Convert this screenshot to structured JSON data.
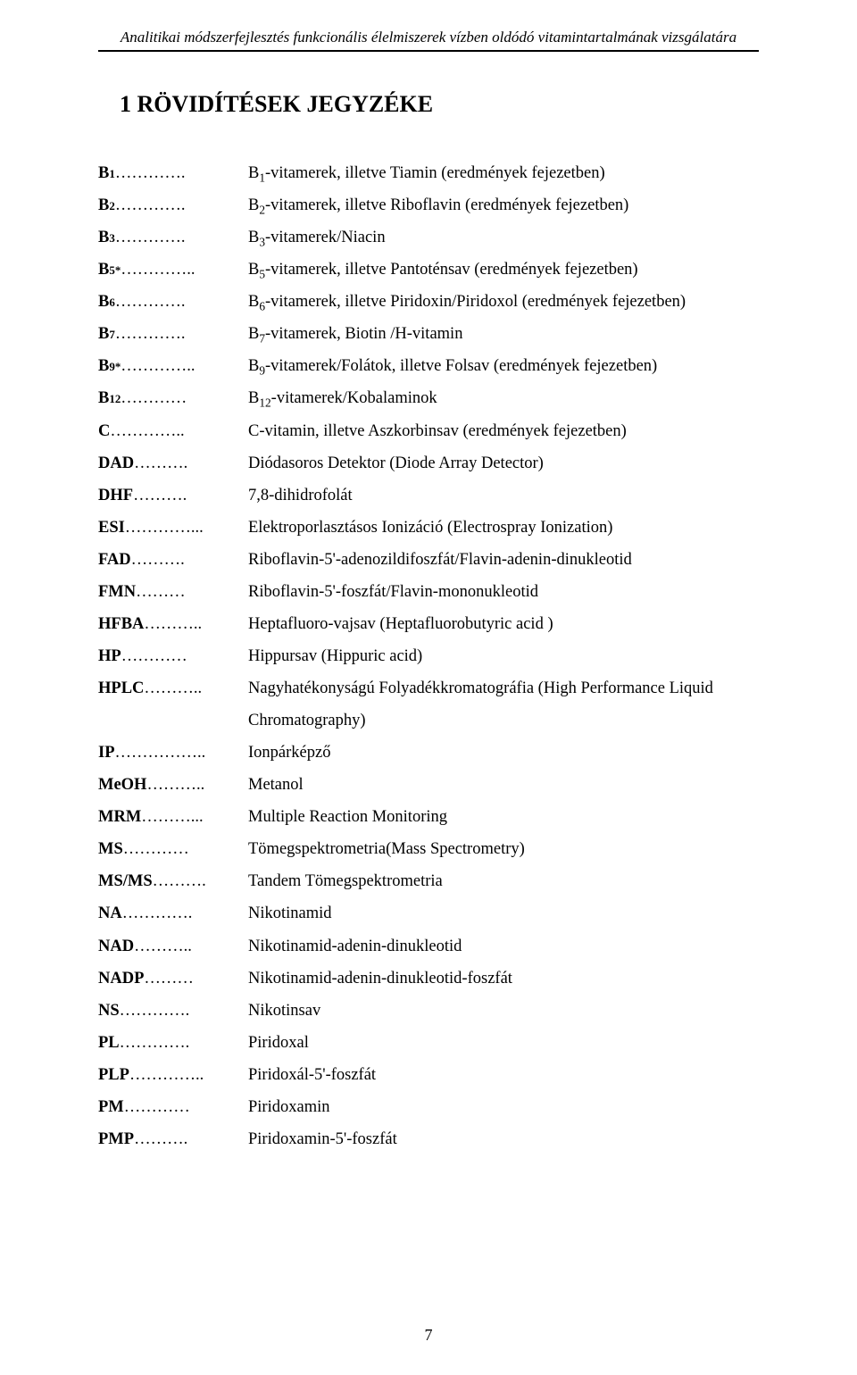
{
  "header": {
    "running_head": "Analitikai módszerfejlesztés funkcionális élelmiszerek vízben oldódó vitamintartalmának vizsgálatára"
  },
  "title": "1   RÖVIDÍTÉSEK JEGYZÉKE",
  "entries": [
    {
      "abbr_html": "B<sub>1</sub>",
      "dots": "…………",
      "sep": ".",
      "def_html": "B<sub>1</sub>-vitamerek, illetve Tiamin (eredmények fejezetben)"
    },
    {
      "abbr_html": "B<sub>2</sub>",
      "dots": "…………",
      "sep": ".",
      "def_html": "B<sub>2</sub>-vitamerek, illetve Riboflavin (eredmények fejezetben)"
    },
    {
      "abbr_html": "B<sub>3</sub>",
      "dots": "…………",
      "sep": ".",
      "def_html": "B<sub>3</sub>-vitamerek/Niacin"
    },
    {
      "abbr_html": "B<sub>5</sub><sup>*</sup>",
      "dots": "………….",
      "sep": ".",
      "def_html": "B<sub>5</sub>-vitamerek, illetve Pantoténsav (eredmények fejezetben)"
    },
    {
      "abbr_html": "B<sub>6</sub>",
      "dots": "…………",
      "sep": ".",
      "def_html": "B<sub>6</sub>-vitamerek, illetve Piridoxin/Piridoxol (eredmények fejezetben)"
    },
    {
      "abbr_html": "B<sub>7</sub>",
      "dots": "…………",
      "sep": ".",
      "def_html": "B<sub>7</sub>-vitamerek, Biotin /H-vitamin"
    },
    {
      "abbr_html": "B<sub>9</sub><sup>*</sup>",
      "dots": "………….",
      "sep": ".",
      "def_html": "B<sub>9</sub>-vitamerek/Folátok, illetve Folsav (eredmények fejezetben)"
    },
    {
      "abbr_html": "B<sub>12</sub>",
      "dots": "…………",
      "sep": "",
      "def_html": "B<sub>12</sub>-vitamerek/Kobalaminok"
    },
    {
      "abbr_html": "C",
      "dots": "…………",
      "sep": "..",
      "def_html": "C-vitamin, illetve Aszkorbinsav (eredmények fejezetben)"
    },
    {
      "abbr_html": "DAD",
      "dots": "………",
      "sep": ".",
      "def_html": "Diódasoros Detektor (Diode Array Detector)"
    },
    {
      "abbr_html": "DHF",
      "dots": "………",
      "sep": ".",
      "def_html": "7,8-dihidrofolát"
    },
    {
      "abbr_html": "ESI",
      "dots": "…………",
      "sep": "...",
      "def_html": "Elektroporlasztásos Ionizáció (Electrospray Ionization)"
    },
    {
      "abbr_html": "FAD",
      "dots": "………",
      "sep": ".",
      "def_html": "Riboflavin-5'-adenozildifoszfát/Flavin-adenin-dinukleotid"
    },
    {
      "abbr_html": "FMN",
      "dots": "………",
      "sep": "",
      "def_html": "Riboflavin-5'-foszfát/Flavin-mononukleotid"
    },
    {
      "abbr_html": "HFBA",
      "dots": "………",
      "sep": "..",
      "def_html": "Heptafluoro-vajsav (Heptafluorobutyric acid )"
    },
    {
      "abbr_html": "HP",
      "dots": "…………",
      "sep": "",
      "def_html": "Hippursav (Hippuric acid)"
    },
    {
      "abbr_html": "HPLC",
      "dots": "………",
      "sep": "..",
      "def_html": "Nagyhatékonyságú Folyadékkromatográfia (High Performance Liquid",
      "cont": "Chromatography)"
    },
    {
      "abbr_html": "IP",
      "dots": "……………",
      "sep": "..",
      "def_html": "Ionpárképző"
    },
    {
      "abbr_html": "MeOH",
      "dots": "………",
      "sep": "..",
      "def_html": "Metanol"
    },
    {
      "abbr_html": "MRM",
      "dots": "………",
      "sep": "...",
      "def_html": "Multiple Reaction Monitoring"
    },
    {
      "abbr_html": "MS",
      "dots": "…………",
      "sep": "",
      "def_html": "Tömegspektrometria(Mass Spectrometry)"
    },
    {
      "abbr_html": "MS/MS",
      "dots": "………",
      "sep": ".",
      "def_html": "Tandem Tömegspektrometria"
    },
    {
      "abbr_html": "NA",
      "dots": "…………",
      "sep": ".",
      "def_html": "Nikotinamid"
    },
    {
      "abbr_html": "NAD",
      "dots": "………",
      "sep": "..",
      "def_html": "Nikotinamid-adenin-dinukleotid"
    },
    {
      "abbr_html": "NADP",
      "dots": "………",
      "sep": "",
      "def_html": "Nikotinamid-adenin-dinukleotid-foszfát"
    },
    {
      "abbr_html": "NS",
      "dots": "…………",
      "sep": ".",
      "def_html": "Nikotinsav"
    },
    {
      "abbr_html": "PL",
      "dots": "…………",
      "sep": ".",
      "def_html": "Piridoxal"
    },
    {
      "abbr_html": "PLP",
      "dots": "…………",
      "sep": "..",
      "def_html": "Piridoxál-5'-foszfát"
    },
    {
      "abbr_html": "PM",
      "dots": "…………",
      "sep": "",
      "def_html": "Piridoxamin"
    },
    {
      "abbr_html": "PMP",
      "dots": "………",
      "sep": ".",
      "def_html": "Piridoxamin-5'-foszfát"
    }
  ],
  "page_number": "7"
}
